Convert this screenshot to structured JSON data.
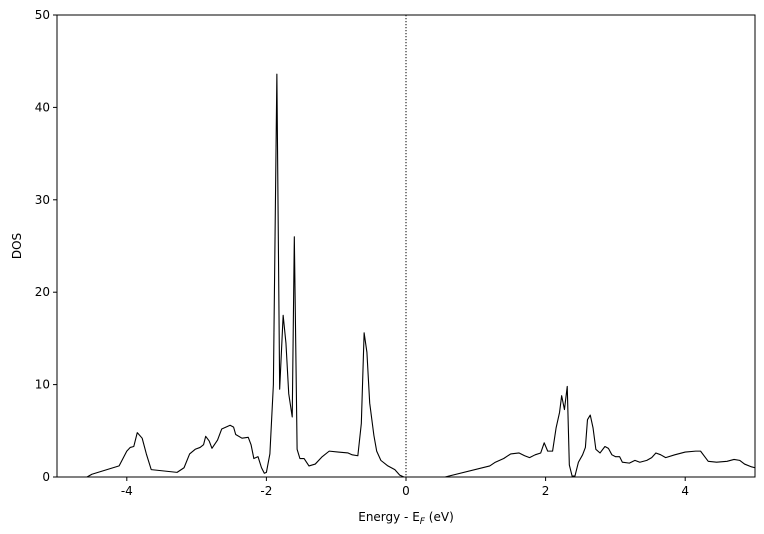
{
  "chart_data": {
    "type": "line",
    "xlabel": [
      "Energy - E",
      "F",
      " (eV)"
    ],
    "ylabel": "DOS",
    "xlim": [
      -5,
      5
    ],
    "ylim": [
      0,
      50
    ],
    "xticks": [
      -4,
      -2,
      0,
      2,
      4
    ],
    "yticks": [
      0,
      10,
      20,
      30,
      40,
      50
    ],
    "vline": 0,
    "series": [
      {
        "color": "#000000",
        "x": [
          -5,
          -4.57,
          -4.5,
          -4.11,
          -4.0,
          -3.95,
          -3.9,
          -3.85,
          -3.78,
          -3.72,
          -3.65,
          -3.28,
          -3.18,
          -3.1,
          -3.02,
          -2.95,
          -2.9,
          -2.87,
          -2.82,
          -2.78,
          -2.7,
          -2.64,
          -2.58,
          -2.52,
          -2.47,
          -2.44,
          -2.35,
          -2.26,
          -2.22,
          -2.18,
          -2.12,
          -2.07,
          -2.03,
          -2.0,
          -1.95,
          -1.9,
          -1.85,
          -1.81,
          -1.76,
          -1.72,
          -1.68,
          -1.63,
          -1.6,
          -1.56,
          -1.52,
          -1.46,
          -1.39,
          -1.3,
          -1.2,
          -1.1,
          -0.97,
          -0.83,
          -0.77,
          -0.69,
          -0.64,
          -0.6,
          -0.56,
          -0.52,
          -0.46,
          -0.42,
          -0.36,
          -0.26,
          -0.16,
          -0.09,
          -0.03,
          0,
          0.56,
          1.2,
          1.28,
          1.4,
          1.5,
          1.62,
          1.7,
          1.77,
          1.85,
          1.93,
          1.98,
          2.03,
          2.1,
          2.15,
          2.2,
          2.23,
          2.27,
          2.31,
          2.34,
          2.38,
          2.42,
          2.47,
          2.53,
          2.57,
          2.6,
          2.64,
          2.68,
          2.72,
          2.78,
          2.85,
          2.9,
          2.95,
          3.0,
          3.06,
          3.1,
          3.2,
          3.28,
          3.35,
          3.45,
          3.52,
          3.58,
          3.65,
          3.72,
          3.85,
          4.0,
          4.15,
          4.22,
          4.28,
          4.33,
          4.45,
          4.6,
          4.7,
          4.78,
          4.85,
          4.95,
          5
        ],
        "values": [
          0,
          0,
          0.3,
          1.2,
          2.8,
          3.2,
          3.3,
          4.8,
          4.2,
          2.5,
          0.8,
          0.5,
          1.0,
          2.5,
          3.0,
          3.2,
          3.5,
          4.4,
          3.9,
          3.1,
          4.0,
          5.2,
          5.4,
          5.6,
          5.4,
          4.6,
          4.2,
          4.3,
          3.5,
          2.0,
          2.2,
          1.0,
          0.4,
          0.5,
          2.5,
          10,
          43.6,
          9.5,
          17.5,
          14.5,
          9,
          6.5,
          26,
          3,
          2.0,
          2.0,
          1.2,
          1.4,
          2.2,
          2.8,
          2.7,
          2.6,
          2.4,
          2.3,
          5.8,
          15.6,
          13.5,
          8,
          4.5,
          2.8,
          1.8,
          1.2,
          0.8,
          0.2,
          0,
          0,
          0,
          1.2,
          1.6,
          2.0,
          2.5,
          2.6,
          2.3,
          2.1,
          2.4,
          2.6,
          3.7,
          2.8,
          2.8,
          5.3,
          7,
          8.8,
          7.3,
          9.8,
          1.3,
          0.1,
          0.1,
          1.6,
          2.4,
          3.2,
          6.2,
          6.7,
          5.3,
          3.0,
          2.6,
          3.3,
          3.1,
          2.4,
          2.2,
          2.2,
          1.6,
          1.5,
          1.8,
          1.6,
          1.8,
          2.1,
          2.6,
          2.4,
          2.1,
          2.4,
          2.7,
          2.8,
          2.8,
          2.2,
          1.7,
          1.6,
          1.7,
          1.9,
          1.8,
          1.4,
          1.1,
          1.0
        ]
      }
    ]
  }
}
